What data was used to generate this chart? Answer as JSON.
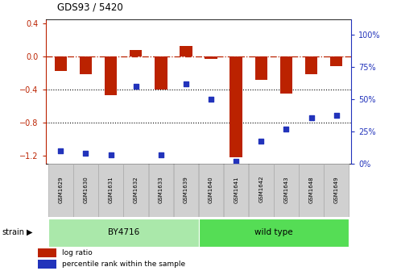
{
  "title": "GDS93 / 5420",
  "samples": [
    "GSM1629",
    "GSM1630",
    "GSM1631",
    "GSM1632",
    "GSM1633",
    "GSM1639",
    "GSM1640",
    "GSM1641",
    "GSM1642",
    "GSM1643",
    "GSM1648",
    "GSM1649"
  ],
  "log_ratio": [
    -0.18,
    -0.22,
    -0.47,
    0.08,
    -0.4,
    0.12,
    -0.03,
    -1.22,
    -0.28,
    -0.45,
    -0.22,
    -0.12
  ],
  "percentile_rank": [
    10,
    8,
    7,
    60,
    7,
    62,
    50,
    2,
    18,
    27,
    36,
    38
  ],
  "bar_color": "#bb2200",
  "dot_color": "#2233bb",
  "strain_groups": [
    {
      "label": "BY4716",
      "start": 0,
      "end": 6,
      "color": "#aae8aa"
    },
    {
      "label": "wild type",
      "start": 6,
      "end": 12,
      "color": "#55dd55"
    }
  ],
  "ylim_left": [
    -1.3,
    0.45
  ],
  "ylim_right": [
    0,
    112.5
  ],
  "ylabel_left_ticks": [
    0.4,
    0.0,
    -0.4,
    -0.8,
    -1.2
  ],
  "ylabel_right_ticks": [
    100,
    75,
    50,
    25,
    0
  ],
  "dotted_hlines": [
    -0.4,
    -0.8
  ],
  "bg_color": "#ffffff",
  "cell_color": "#d0d0d0",
  "cell_edge_color": "#aaaaaa"
}
